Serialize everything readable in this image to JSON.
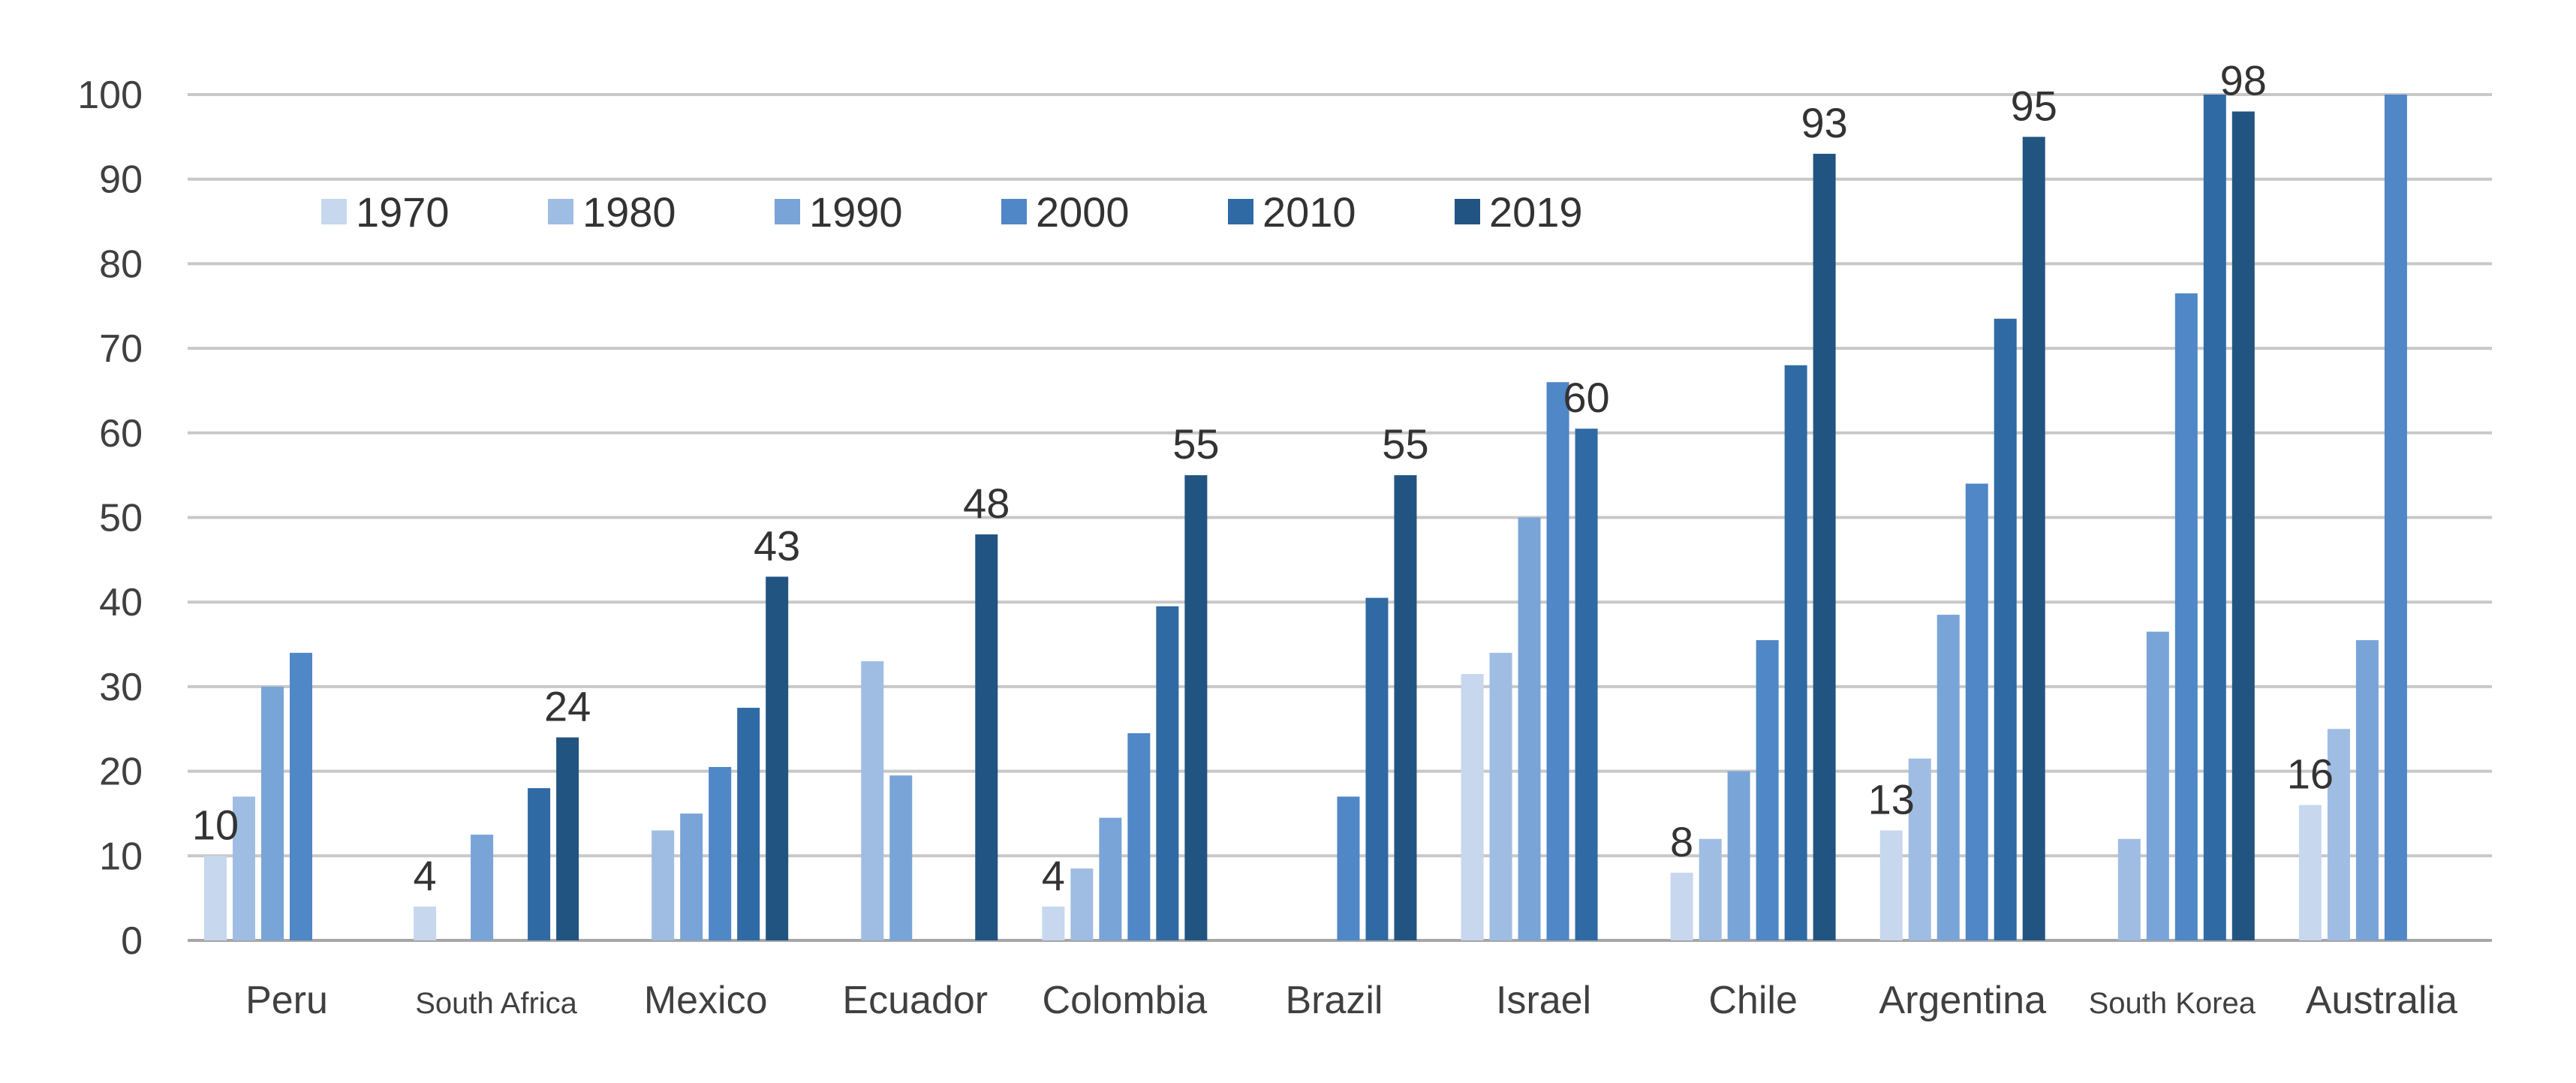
{
  "chart_data": {
    "type": "bar",
    "title": "",
    "xlabel": "",
    "ylabel": "",
    "ylim": [
      0,
      100
    ],
    "yticks": [
      0,
      10,
      20,
      30,
      40,
      50,
      60,
      70,
      80,
      90,
      100
    ],
    "grid": true,
    "legend_position": "top-left",
    "categories": [
      "Peru",
      "South Africa",
      "Mexico",
      "Ecuador",
      "Colombia",
      "Brazil",
      "Israel",
      "Chile",
      "Argentina",
      "South Korea",
      "Australia"
    ],
    "small_label_categories": [
      "South Africa",
      "South Korea"
    ],
    "series": [
      {
        "name": "1970",
        "color": "#c6d7ee",
        "values": [
          10,
          4,
          null,
          null,
          4,
          null,
          31.5,
          8,
          13,
          null,
          16
        ]
      },
      {
        "name": "1980",
        "color": "#9fbde3",
        "values": [
          17,
          null,
          13,
          33,
          8.5,
          null,
          34,
          12,
          21.5,
          12,
          25
        ]
      },
      {
        "name": "1990",
        "color": "#79a4d8",
        "values": [
          30,
          12.5,
          15,
          19.5,
          14.5,
          null,
          50,
          20,
          38.5,
          36.5,
          35.5
        ]
      },
      {
        "name": "2000",
        "color": "#4f87c7",
        "values": [
          34,
          null,
          20.5,
          null,
          24.5,
          17,
          66,
          35.5,
          54,
          76.5,
          100
        ]
      },
      {
        "name": "2010",
        "color": "#2f6aa4",
        "values": [
          null,
          18,
          27.5,
          null,
          39.5,
          40.5,
          60.5,
          68,
          73.5,
          100,
          null
        ]
      },
      {
        "name": "2019",
        "color": "#225482",
        "values": [
          null,
          24,
          43,
          48,
          55,
          55,
          null,
          93,
          95,
          98,
          null
        ]
      }
    ],
    "data_labels": [
      {
        "category": "Peru",
        "series": "1970",
        "text": "10"
      },
      {
        "category": "South Africa",
        "series": "1970",
        "text": "4"
      },
      {
        "category": "South Africa",
        "series": "2019",
        "text": "24"
      },
      {
        "category": "Mexico",
        "series": "2019",
        "text": "43"
      },
      {
        "category": "Ecuador",
        "series": "2019",
        "text": "48"
      },
      {
        "category": "Colombia",
        "series": "1970",
        "text": "4"
      },
      {
        "category": "Colombia",
        "series": "2019",
        "text": "55"
      },
      {
        "category": "Brazil",
        "series": "2019",
        "text": "55"
      },
      {
        "category": "Israel",
        "series": "2010",
        "text": "60"
      },
      {
        "category": "Chile",
        "series": "1970",
        "text": "8"
      },
      {
        "category": "Chile",
        "series": "2019",
        "text": "93"
      },
      {
        "category": "Argentina",
        "series": "1970",
        "text": "13"
      },
      {
        "category": "Argentina",
        "series": "2019",
        "text": "95"
      },
      {
        "category": "South Korea",
        "series": "2019",
        "text": "98"
      },
      {
        "category": "Australia",
        "series": "1970",
        "text": "16"
      }
    ]
  }
}
